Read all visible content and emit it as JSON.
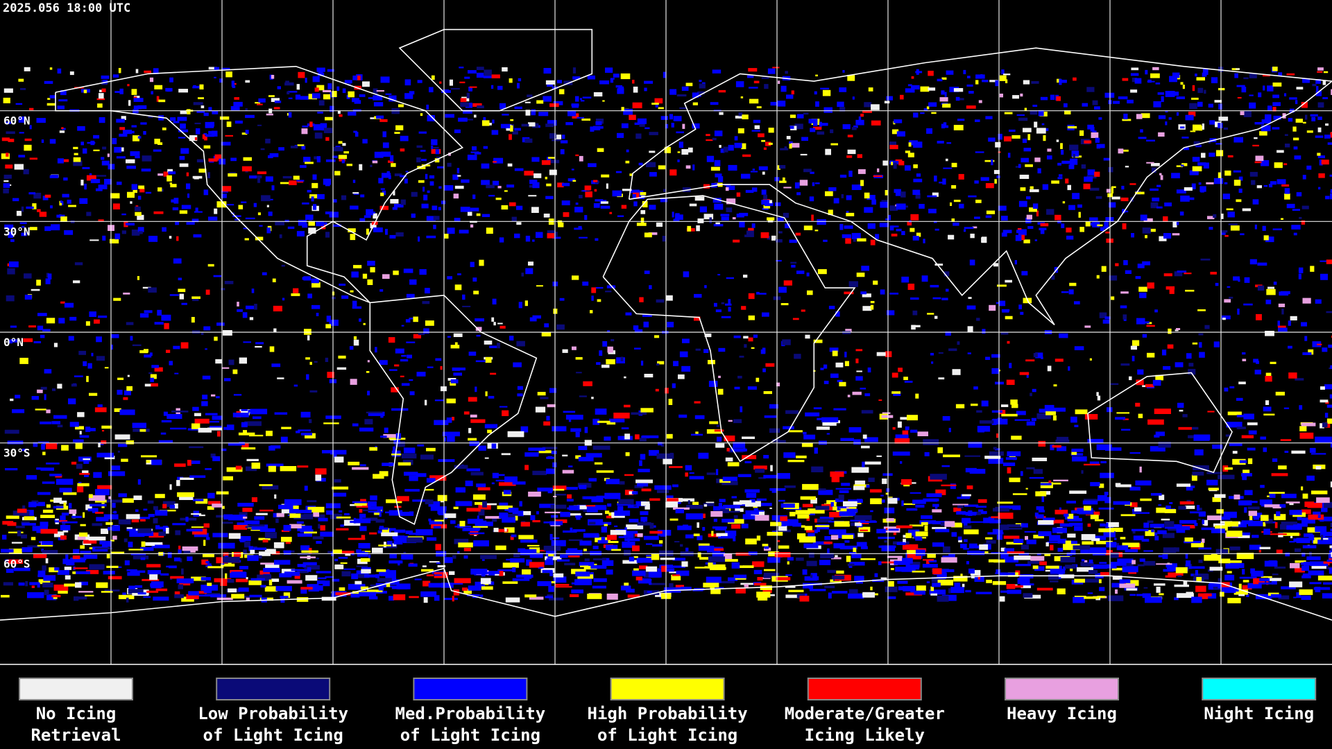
{
  "header": {
    "timestamp": "2025.056 18:00 UTC"
  },
  "map": {
    "latitude_labels": [
      "60°N",
      "30°N",
      "0°N",
      "30°S",
      "60°S"
    ]
  },
  "legend": {
    "items": [
      {
        "color": "#f0f0f0",
        "label": [
          "No Icing",
          "Retrieval"
        ]
      },
      {
        "color": "#0a0a78",
        "label": [
          "Low Probability",
          "of Light Icing"
        ]
      },
      {
        "color": "#0000ff",
        "label": [
          "Med.Probability",
          "of Light Icing"
        ]
      },
      {
        "color": "#ffff00",
        "label": [
          "High Probability",
          "of Light Icing"
        ]
      },
      {
        "color": "#ff0000",
        "label": [
          "Moderate/Greater",
          "Icing Likely"
        ]
      },
      {
        "color": "#e8a0e0",
        "label": [
          "Heavy Icing",
          ""
        ]
      },
      {
        "color": "#00ffff",
        "label": [
          "Night Icing",
          ""
        ]
      }
    ]
  }
}
